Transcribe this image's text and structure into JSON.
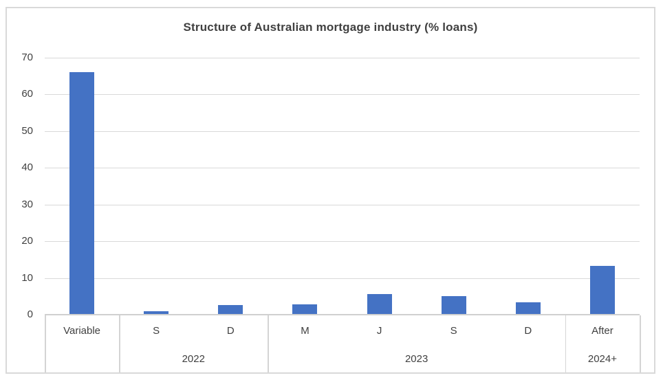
{
  "chart_data": {
    "type": "bar",
    "title": "Structure of Australian mortgage industry (% loans)",
    "categories": [
      "Variable",
      "S",
      "D",
      "M",
      "J",
      "S",
      "D",
      "After"
    ],
    "values": [
      66,
      0.9,
      2.7,
      2.9,
      5.7,
      5,
      3.4,
      13.3
    ],
    "groups": [
      {
        "label": "",
        "span": 1
      },
      {
        "label": "2022",
        "span": 2
      },
      {
        "label": "2023",
        "span": 4
      },
      {
        "label": "2024+",
        "span": 1
      }
    ],
    "xlabel": "",
    "ylabel": "",
    "ylim": [
      0,
      70
    ],
    "yticks": [
      0,
      10,
      20,
      30,
      40,
      50,
      60,
      70
    ],
    "grid": true,
    "legend": "none",
    "bar_color": "#4472C4",
    "grid_color": "#D9D9D9",
    "axis_line_color": "#D0D0D0",
    "text_color": "#404040",
    "border_color": "#D9D9D9"
  }
}
